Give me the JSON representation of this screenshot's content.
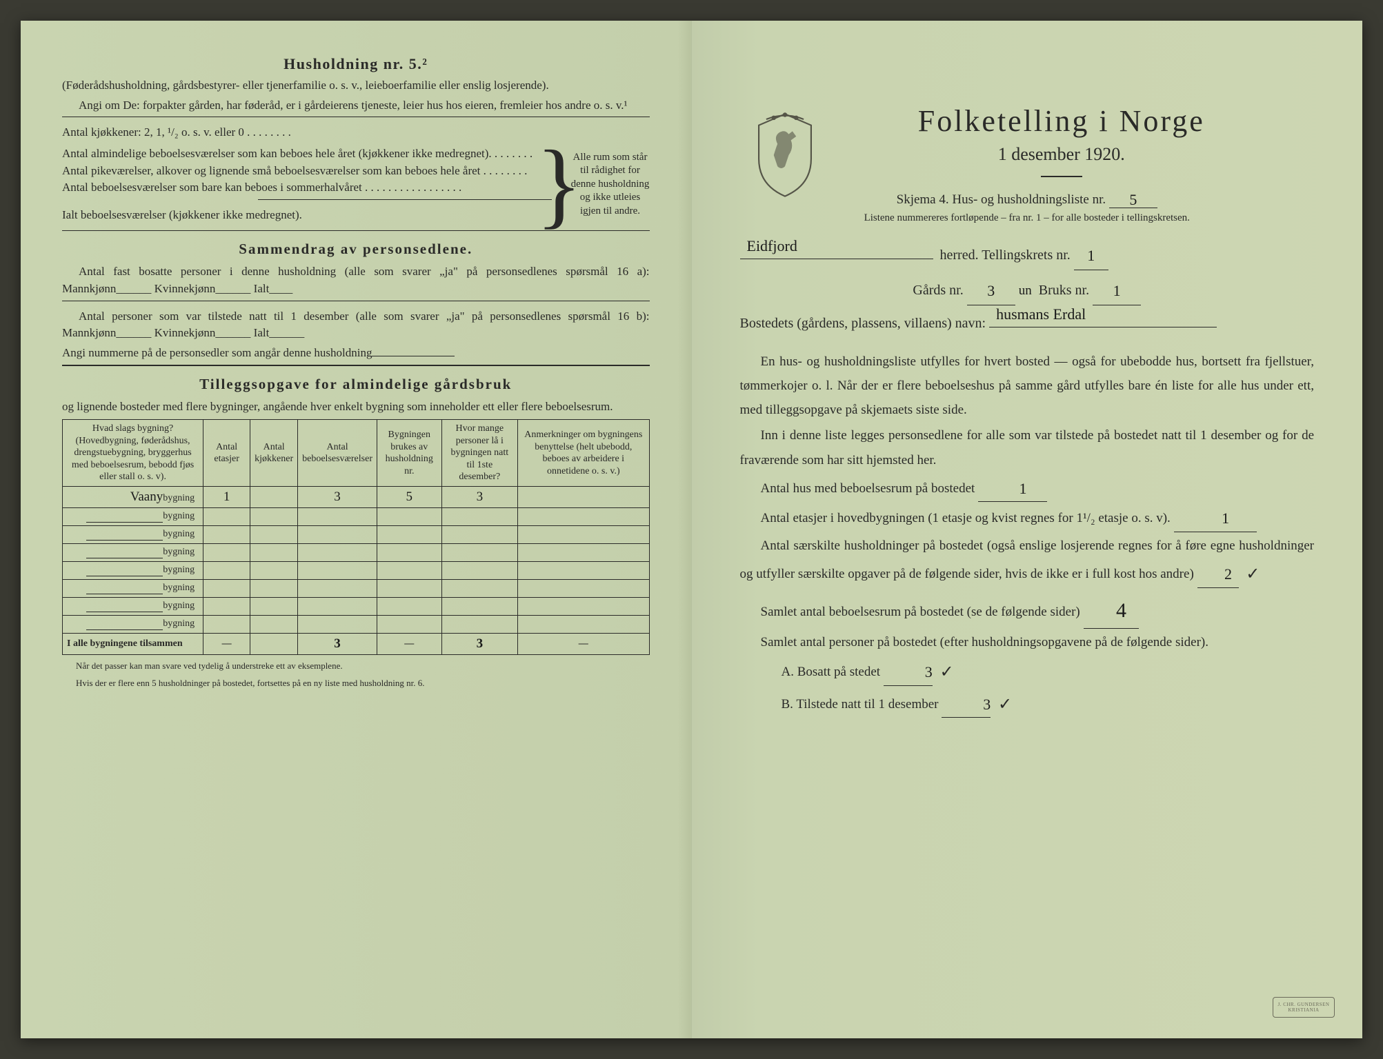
{
  "left": {
    "heading": "Husholdning nr. 5.²",
    "intro1": "(Føderådshusholdning, gårdsbestyrer- eller tjenerfamilie o. s. v., leieboerfamilie eller enslig losjerende).",
    "intro2": "Angi om De:  forpakter gården, har føderåd, er i gårdeierens tjeneste, leier hus hos eieren, fremleier hos andre o. s. v.¹",
    "kjokken_line": "Antal kjøkkener: 2, 1, ¹/₂ o. s. v. eller 0 . . . . . . . .",
    "bracket_items": [
      "Antal almindelige beboelsesværelser som kan beboes hele året (kjøkkener ikke medregnet). . . . . . . .",
      "Antal pikeværelser, alkover og lignende små beboelsesværelser som kan beboes hele året . . . . . . . .",
      "Antal beboelsesværelser som bare kan beboes i sommerhalvåret . . . . . . . . . . . . . . . . ."
    ],
    "ialt_line": "Ialt beboelsesværelser (kjøkkener ikke medregnet).",
    "bracket_right": "Alle rum som står til rådighet for denne husholdning og ikke utleies igjen til andre.",
    "sammendrag_title": "Sammendrag av personsedlene.",
    "sammendrag_p1": "Antal fast bosatte personer i denne husholdning (alle som svarer „ja\" på personsedlenes spørsmål 16 a): Mannkjønn______ Kvinnekjønn______ Ialt____",
    "sammendrag_p2": "Antal personer som var tilstede natt til 1 desember (alle som svarer „ja\" på personsedlenes spørsmål 16 b): Mannkjønn______ Kvinnekjønn______ Ialt______",
    "sammendrag_p3": "Angi nummerne på de personsedler som angår denne husholdning",
    "tillegg_title": "Tilleggsopgave for almindelige gårdsbruk",
    "tillegg_sub": "og lignende bosteder med flere bygninger, angående hver enkelt bygning som inneholder ett eller flere beboelsesrum.",
    "table": {
      "headers": [
        "Hvad slags bygning?\n(Hovedbygning, føderådshus, drengstuebygning, bryggerhus med beboelsesrum, bebodd fjøs eller stall o. s. v).",
        "Antal etasjer",
        "Antal kjøkkener",
        "Antal beboelsesværelser",
        "Bygningen brukes av husholdning nr.",
        "Hvor mange personer lå i bygningen natt til 1ste desember?",
        "Anmerkninger om bygningens benyttelse (helt ubebodd, beboes av arbeidere i onnetidene o. s. v.)"
      ],
      "row_label_suffix": "bygning",
      "rows": [
        {
          "prefix": "Vaany",
          "etasjer": "1",
          "kjokk": "",
          "bebo": "3",
          "hush": "5",
          "pers": "3",
          "anm": ""
        },
        {
          "prefix": "",
          "etasjer": "",
          "kjokk": "",
          "bebo": "",
          "hush": "",
          "pers": "",
          "anm": ""
        },
        {
          "prefix": "",
          "etasjer": "",
          "kjokk": "",
          "bebo": "",
          "hush": "",
          "pers": "",
          "anm": ""
        },
        {
          "prefix": "",
          "etasjer": "",
          "kjokk": "",
          "bebo": "",
          "hush": "",
          "pers": "",
          "anm": ""
        },
        {
          "prefix": "",
          "etasjer": "",
          "kjokk": "",
          "bebo": "",
          "hush": "",
          "pers": "",
          "anm": ""
        },
        {
          "prefix": "",
          "etasjer": "",
          "kjokk": "",
          "bebo": "",
          "hush": "",
          "pers": "",
          "anm": ""
        },
        {
          "prefix": "",
          "etasjer": "",
          "kjokk": "",
          "bebo": "",
          "hush": "",
          "pers": "",
          "anm": ""
        },
        {
          "prefix": "",
          "etasjer": "",
          "kjokk": "",
          "bebo": "",
          "hush": "",
          "pers": "",
          "anm": ""
        }
      ],
      "total_label": "I alle bygningene tilsammen",
      "totals": {
        "etasjer": "—",
        "kjokk": "",
        "bebo": "3",
        "hush": "—",
        "pers": "3",
        "anm": "—"
      }
    },
    "footnote1": "Når det passer kan man svare ved tydelig å understreke ett av eksemplene.",
    "footnote2": "Hvis der er flere enn 5 husholdninger på bostedet, fortsettes på en ny liste med husholdning nr. 6."
  },
  "right": {
    "title": "Folketelling i Norge",
    "subtitle": "1 desember 1920.",
    "skjema_line_a": "Skjema 4.  Hus- og husholdningsliste nr.",
    "skjema_nr": "5",
    "listener_line": "Listene nummereres fortløpende – fra nr. 1 – for alle bosteder i tellingskretsen.",
    "herred_value": "Eidfjord",
    "herred_label": "herred.  Tellingskrets nr.",
    "tellingskrets_nr": "1",
    "gards_label": "Gårds nr.",
    "gards_nr": "3",
    "bruks_mid": "un",
    "bruks_label": "Bruks nr.",
    "bruks_nr": "1",
    "bosted_label": "Bostedets (gårdens, plassens, villaens) navn:",
    "bosted_value": "husmans Erdal",
    "body": [
      "En hus- og husholdningsliste utfylles for hvert bosted — også for ubebodde hus, bortsett fra fjellstuer, tømmerkojer o. l. Når der er flere beboelseshus på samme gård utfylles bare én liste for alle hus under ett, med tilleggsopgave på skjemaets siste side.",
      "Inn i denne liste legges personsedlene for alle som var tilstede på bostedet natt til 1 desember og for de fraværende som har sitt hjemsted her."
    ],
    "antal_hus_label": "Antal hus med beboelsesrum på bostedet",
    "antal_hus": "1",
    "antal_etasjer_p": "Antal etasjer i hovedbygningen (1 etasje og kvist regnes for 1¹/₂ etasje o. s. v).",
    "antal_etasjer": "1",
    "antal_hush_p": "Antal særskilte husholdninger på bostedet (også enslige losjerende regnes for å føre egne husholdninger og utfyller særskilte opgaver på de følgende sider, hvis de ikke er i full kost hos andre)",
    "antal_hush": "2",
    "samlet_bebo_label": "Samlet antal beboelsesrum på bostedet (se de følgende sider)",
    "samlet_bebo": "4",
    "samlet_pers_p": "Samlet antal personer på bostedet (efter husholdningsopgavene på de følgende sider).",
    "line_a_label": "A.  Bosatt på stedet",
    "line_a": "3",
    "line_b_label": "B.  Tilstede natt til 1 desember",
    "line_b": "3",
    "stamp": "J. CHR. GUNDERSEN\nKRISTIANIA"
  },
  "colors": {
    "paper": "#c9d4b0",
    "ink": "#2a2a28",
    "handwriting": "#1a1a1a"
  }
}
